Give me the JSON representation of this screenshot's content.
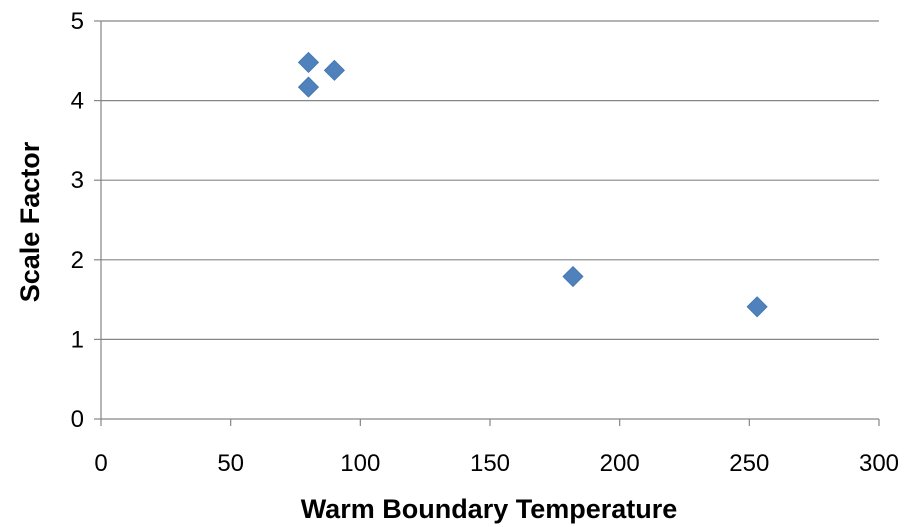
{
  "chart_data": {
    "type": "scatter",
    "title": "",
    "xlabel": "Warm Boundary Temperature",
    "ylabel": "Scale Factor",
    "xlim": [
      0,
      300
    ],
    "ylim": [
      0,
      5
    ],
    "x_ticks": [
      0,
      50,
      100,
      150,
      200,
      250,
      300
    ],
    "y_ticks": [
      0,
      1,
      2,
      3,
      4,
      5
    ],
    "x_tick_labels": [
      "0",
      "50",
      "100",
      "150",
      "200",
      "250",
      "300"
    ],
    "y_tick_labels": [
      "0",
      "1",
      "2",
      "3",
      "4",
      "5"
    ],
    "grid": "horizontal",
    "legend": "none",
    "marker": "diamond",
    "marker_color": "#4F81BD",
    "series": [
      {
        "x": [
          80,
          80,
          90,
          182,
          253
        ],
        "y": [
          4.48,
          4.17,
          4.38,
          1.79,
          1.41
        ]
      }
    ]
  }
}
